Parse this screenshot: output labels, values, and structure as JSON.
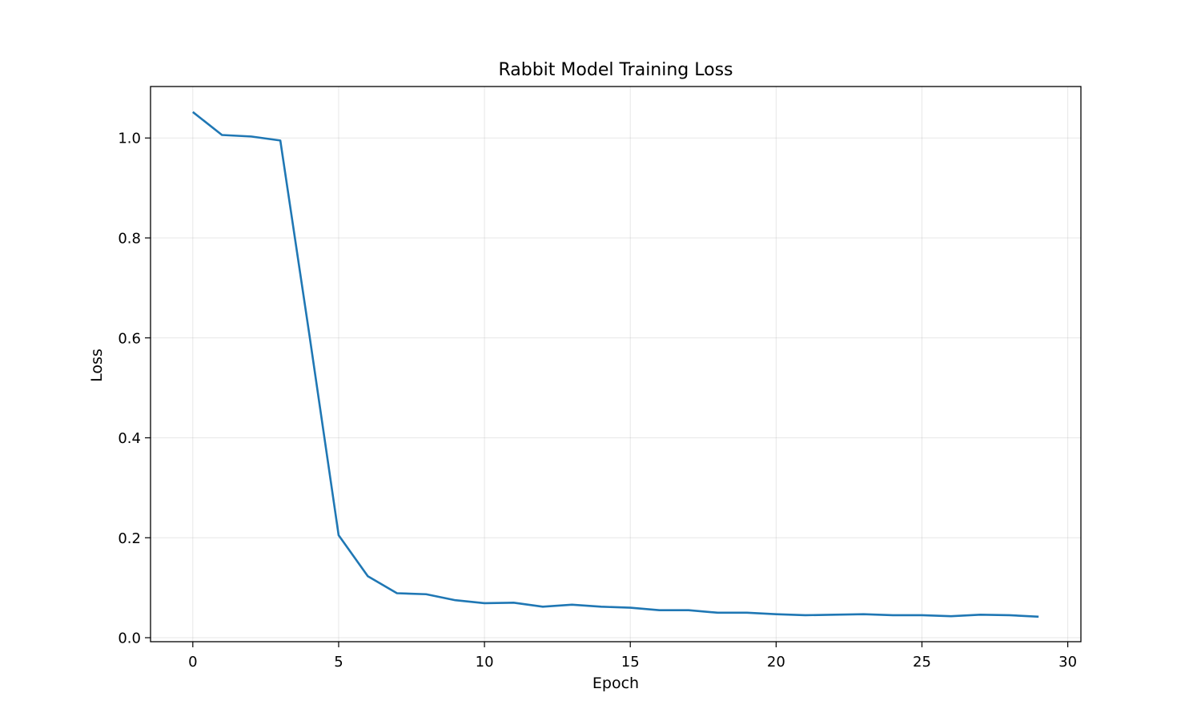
{
  "chart_data": {
    "type": "line",
    "title": "Rabbit Model Training Loss",
    "xlabel": "Epoch",
    "ylabel": "Loss",
    "xlim": [
      -1.45,
      30.45
    ],
    "ylim": [
      -0.008,
      1.103
    ],
    "xticks": [
      0,
      5,
      10,
      15,
      20,
      25,
      30
    ],
    "yticks": [
      0.0,
      0.2,
      0.4,
      0.6,
      0.8,
      1.0
    ],
    "xtick_labels": [
      "0",
      "5",
      "10",
      "15",
      "20",
      "25",
      "30"
    ],
    "ytick_labels": [
      "0.0",
      "0.2",
      "0.4",
      "0.6",
      "0.8",
      "1.0"
    ],
    "grid": true,
    "series": [
      {
        "color": "#1f77b4",
        "x": [
          0,
          1,
          2,
          3,
          4,
          5,
          6,
          7,
          8,
          9,
          10,
          11,
          12,
          13,
          14,
          15,
          16,
          17,
          18,
          19,
          20,
          21,
          22,
          23,
          24,
          25,
          26,
          27,
          28,
          29
        ],
        "y": [
          1.052,
          1.006,
          1.003,
          0.995,
          0.605,
          0.205,
          0.123,
          0.089,
          0.087,
          0.075,
          0.069,
          0.07,
          0.062,
          0.066,
          0.062,
          0.06,
          0.055,
          0.055,
          0.05,
          0.05,
          0.047,
          0.045,
          0.046,
          0.047,
          0.045,
          0.045,
          0.043,
          0.046,
          0.045,
          0.042
        ]
      }
    ]
  }
}
